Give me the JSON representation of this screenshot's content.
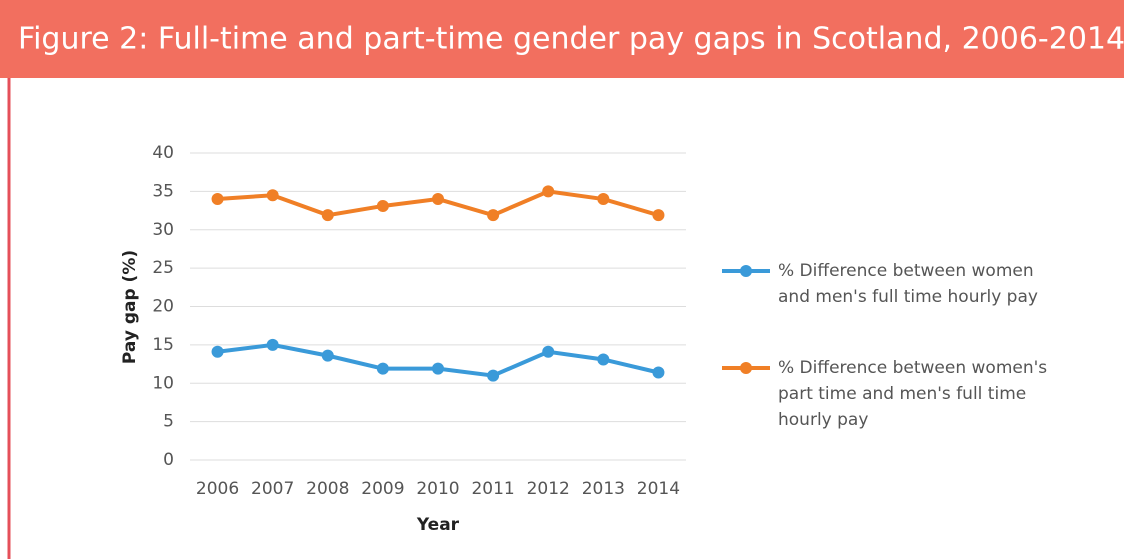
{
  "chart_data": {
    "type": "line",
    "title": "Figure 2: Full-time and part-time gender pay gaps in Scotland, 2006-2014",
    "x_label": "Year",
    "y_label": "Pay gap (%)",
    "categories": [
      "2006",
      "2007",
      "2008",
      "2009",
      "2010",
      "2011",
      "2012",
      "2013",
      "2014"
    ],
    "series": [
      {
        "name": "% Difference between women and men's full time hourly pay",
        "color": "#3a9ad9",
        "values": [
          14.1,
          15,
          13.6,
          11.9,
          11.9,
          11,
          14.1,
          13.1,
          11.4
        ]
      },
      {
        "name": "% Difference between women's part time and men's full time hourly pay",
        "color": "#f07f26",
        "values": [
          34,
          34.5,
          31.9,
          33.1,
          34,
          31.9,
          35,
          34,
          31.9
        ]
      }
    ],
    "ylim": [
      0,
      40
    ],
    "yticks": [
      0,
      5,
      10,
      15,
      20,
      25,
      30,
      35,
      40
    ],
    "grid": true,
    "legend": "right"
  }
}
